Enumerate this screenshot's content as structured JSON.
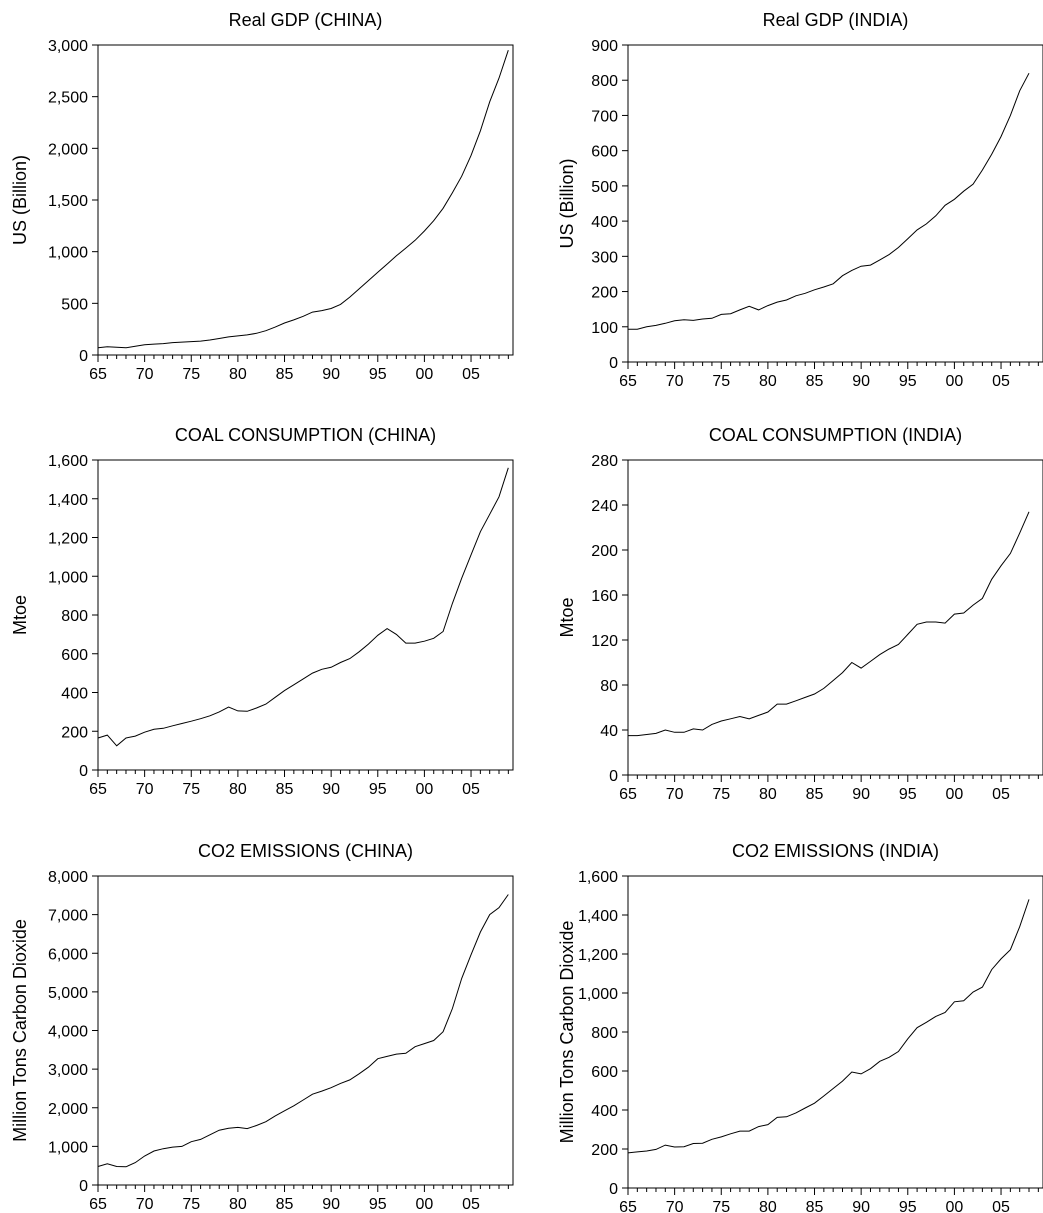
{
  "chart_data": [
    {
      "type": "line",
      "title": "Real GDP (CHINA)",
      "xlabel": "",
      "ylabel": "US (Billion)",
      "xlim": [
        1965,
        2009
      ],
      "ylim": [
        0,
        3000
      ],
      "grid": false,
      "xticks": [
        "65",
        "70",
        "75",
        "80",
        "85",
        "90",
        "95",
        "00",
        "05"
      ],
      "yticks": [
        "0",
        "500",
        "1,000",
        "1,500",
        "2,000",
        "2,500",
        "3,000"
      ],
      "series": [
        {
          "x": [
            1965,
            1966,
            1967,
            1968,
            1969,
            1970,
            1971,
            1972,
            1973,
            1974,
            1975,
            1976,
            1977,
            1978,
            1979,
            1980,
            1981,
            1982,
            1983,
            1984,
            1985,
            1986,
            1987,
            1988,
            1989,
            1990,
            1991,
            1992,
            1993,
            1994,
            1995,
            1996,
            1997,
            1998,
            1999,
            2000,
            2001,
            2002,
            2003,
            2004,
            2005,
            2006,
            2007,
            2008,
            2009
          ],
          "values": [
            70,
            80,
            75,
            70,
            85,
            100,
            105,
            110,
            120,
            125,
            130,
            135,
            145,
            160,
            175,
            185,
            195,
            210,
            235,
            270,
            310,
            340,
            375,
            415,
            430,
            450,
            490,
            560,
            640,
            720,
            800,
            880,
            960,
            1035,
            1110,
            1200,
            1300,
            1420,
            1570,
            1730,
            1930,
            2170,
            2450,
            2680,
            2950
          ]
        }
      ]
    },
    {
      "type": "line",
      "title": "Real GDP (INDIA)",
      "xlabel": "",
      "ylabel": "US (Billion)",
      "xlim": [
        1965,
        2008
      ],
      "ylim": [
        0,
        900
      ],
      "grid": false,
      "xticks": [
        "65",
        "70",
        "75",
        "80",
        "85",
        "90",
        "95",
        "00",
        "05"
      ],
      "yticks": [
        "0",
        "100",
        "200",
        "300",
        "400",
        "500",
        "600",
        "700",
        "800",
        "900"
      ],
      "series": [
        {
          "x": [
            1965,
            1966,
            1967,
            1968,
            1969,
            1970,
            1971,
            1972,
            1973,
            1974,
            1975,
            1976,
            1977,
            1978,
            1979,
            1980,
            1981,
            1982,
            1983,
            1984,
            1985,
            1986,
            1987,
            1988,
            1989,
            1990,
            1991,
            1992,
            1993,
            1994,
            1995,
            1996,
            1997,
            1998,
            1999,
            2000,
            2001,
            2002,
            2003,
            2004,
            2005,
            2006,
            2007,
            2008
          ],
          "values": [
            93,
            93,
            100,
            104,
            110,
            117,
            120,
            118,
            122,
            124,
            135,
            137,
            148,
            158,
            148,
            160,
            170,
            176,
            188,
            195,
            205,
            213,
            222,
            245,
            260,
            272,
            275,
            290,
            305,
            325,
            350,
            375,
            392,
            415,
            445,
            462,
            485,
            505,
            545,
            590,
            640,
            700,
            770,
            820
          ]
        }
      ]
    },
    {
      "type": "line",
      "title": "COAL CONSUMPTION (CHINA)",
      "xlabel": "",
      "ylabel": "Mtoe",
      "xlim": [
        1965,
        2009
      ],
      "ylim": [
        0,
        1600
      ],
      "grid": false,
      "xticks": [
        "65",
        "70",
        "75",
        "80",
        "85",
        "90",
        "95",
        "00",
        "05"
      ],
      "yticks": [
        "0",
        "200",
        "400",
        "600",
        "800",
        "1,000",
        "1,200",
        "1,400",
        "1,600"
      ],
      "series": [
        {
          "x": [
            1965,
            1966,
            1967,
            1968,
            1969,
            1970,
            1971,
            1972,
            1973,
            1974,
            1975,
            1976,
            1977,
            1978,
            1979,
            1980,
            1981,
            1982,
            1983,
            1984,
            1985,
            1986,
            1987,
            1988,
            1989,
            1990,
            1991,
            1992,
            1993,
            1994,
            1995,
            1996,
            1997,
            1998,
            1999,
            2000,
            2001,
            2002,
            2003,
            2004,
            2005,
            2006,
            2007,
            2008,
            2009
          ],
          "values": [
            165,
            180,
            125,
            165,
            175,
            195,
            210,
            215,
            228,
            240,
            252,
            265,
            280,
            300,
            325,
            305,
            303,
            320,
            340,
            375,
            410,
            440,
            470,
            500,
            520,
            530,
            555,
            575,
            610,
            650,
            695,
            730,
            700,
            655,
            655,
            665,
            680,
            715,
            860,
            990,
            1110,
            1230,
            1320,
            1410,
            1560
          ]
        }
      ]
    },
    {
      "type": "line",
      "title": "COAL CONSUMPTION (INDIA)",
      "xlabel": "",
      "ylabel": "Mtoe",
      "xlim": [
        1965,
        2008
      ],
      "ylim": [
        0,
        280
      ],
      "grid": false,
      "xticks": [
        "65",
        "70",
        "75",
        "80",
        "85",
        "90",
        "95",
        "00",
        "05"
      ],
      "yticks": [
        "0",
        "40",
        "80",
        "120",
        "160",
        "200",
        "240",
        "280"
      ],
      "series": [
        {
          "x": [
            1965,
            1966,
            1967,
            1968,
            1969,
            1970,
            1971,
            1972,
            1973,
            1974,
            1975,
            1976,
            1977,
            1978,
            1979,
            1980,
            1981,
            1982,
            1983,
            1984,
            1985,
            1986,
            1987,
            1988,
            1989,
            1990,
            1991,
            1992,
            1993,
            1994,
            1995,
            1996,
            1997,
            1998,
            1999,
            2000,
            2001,
            2002,
            2003,
            2004,
            2005,
            2006,
            2007,
            2008
          ],
          "values": [
            35,
            35,
            36,
            37,
            40,
            38,
            38,
            41,
            40,
            45,
            48,
            50,
            52,
            50,
            53,
            56,
            63,
            63,
            66,
            69,
            72,
            77,
            84,
            91,
            100,
            95,
            101,
            107,
            112,
            116,
            125,
            134,
            136,
            136,
            135,
            143,
            144,
            151,
            157,
            174,
            186,
            197,
            215,
            234
          ]
        }
      ]
    },
    {
      "type": "line",
      "title": "CO2 EMISSIONS (CHINA)",
      "xlabel": "",
      "ylabel": "Million Tons Carbon Dioxide",
      "xlim": [
        1965,
        2009
      ],
      "ylim": [
        0,
        8000
      ],
      "grid": false,
      "xticks": [
        "65",
        "70",
        "75",
        "80",
        "85",
        "90",
        "95",
        "00",
        "05"
      ],
      "yticks": [
        "0",
        "1,000",
        "2,000",
        "3,000",
        "4,000",
        "5,000",
        "6,000",
        "7,000",
        "8,000"
      ],
      "series": [
        {
          "x": [
            1965,
            1966,
            1967,
            1968,
            1969,
            1970,
            1971,
            1972,
            1973,
            1974,
            1975,
            1976,
            1977,
            1978,
            1979,
            1980,
            1981,
            1982,
            1983,
            1984,
            1985,
            1986,
            1987,
            1988,
            1989,
            1990,
            1991,
            1992,
            1993,
            1994,
            1995,
            1996,
            1997,
            1998,
            1999,
            2000,
            2001,
            2002,
            2003,
            2004,
            2005,
            2006,
            2007,
            2008,
            2009
          ],
          "values": [
            480,
            550,
            480,
            470,
            580,
            750,
            880,
            940,
            980,
            1000,
            1120,
            1180,
            1300,
            1420,
            1470,
            1490,
            1460,
            1540,
            1640,
            1790,
            1920,
            2050,
            2200,
            2350,
            2430,
            2520,
            2630,
            2720,
            2880,
            3050,
            3270,
            3330,
            3390,
            3410,
            3580,
            3660,
            3740,
            3970,
            4570,
            5350,
            5960,
            6550,
            7000,
            7180,
            7520
          ]
        }
      ]
    },
    {
      "type": "line",
      "title": "CO2 EMISSIONS (INDIA)",
      "xlabel": "",
      "ylabel": "Million Tons Carbon Dioxide",
      "xlim": [
        1965,
        2008
      ],
      "ylim": [
        0,
        1600
      ],
      "grid": false,
      "xticks": [
        "65",
        "70",
        "75",
        "80",
        "85",
        "90",
        "95",
        "00",
        "05"
      ],
      "yticks": [
        "0",
        "200",
        "400",
        "600",
        "800",
        "1,000",
        "1,200",
        "1,400",
        "1,600"
      ],
      "series": [
        {
          "x": [
            1965,
            1966,
            1967,
            1968,
            1969,
            1970,
            1971,
            1972,
            1973,
            1974,
            1975,
            1976,
            1977,
            1978,
            1979,
            1980,
            1981,
            1982,
            1983,
            1984,
            1985,
            1986,
            1987,
            1988,
            1989,
            1990,
            1991,
            1992,
            1993,
            1994,
            1995,
            1996,
            1997,
            1998,
            1999,
            2000,
            2001,
            2002,
            2003,
            2004,
            2005,
            2006,
            2007,
            2008
          ],
          "values": [
            180,
            185,
            190,
            198,
            220,
            210,
            212,
            228,
            230,
            250,
            262,
            278,
            292,
            292,
            315,
            325,
            362,
            365,
            385,
            410,
            435,
            472,
            510,
            548,
            595,
            585,
            612,
            650,
            670,
            700,
            765,
            822,
            850,
            880,
            900,
            955,
            960,
            1005,
            1030,
            1120,
            1175,
            1222,
            1340,
            1480
          ]
        }
      ]
    }
  ]
}
